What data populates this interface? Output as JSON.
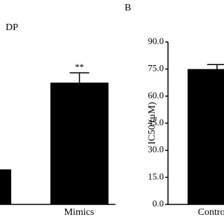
{
  "chart_data": [
    {
      "type": "bar",
      "title": "DP",
      "categories": [
        null,
        "Mimics"
      ],
      "values": [
        50,
        174
      ],
      "errors": [
        null,
        14
      ],
      "value_labels": [
        "*",
        "**"
      ],
      "color": "#000000",
      "ylim": [
        0,
        240
      ]
    },
    {
      "type": "bar",
      "panel_label": "B",
      "y_label": "IC50 (μM)",
      "categories": [
        "Control"
      ],
      "values": [
        75
      ],
      "errors": [
        2.5
      ],
      "color": "#000000",
      "ylim": [
        0,
        90
      ],
      "yticks": [
        {
          "value": 0,
          "label": "0.0"
        },
        {
          "value": 15,
          "label": "15.0"
        },
        {
          "value": 30,
          "label": "30.0"
        },
        {
          "value": 45,
          "label": "45.0"
        },
        {
          "value": 60,
          "label": "60.0"
        },
        {
          "value": 75,
          "label": "75.0"
        },
        {
          "value": 90,
          "label": "90.0"
        }
      ]
    }
  ]
}
